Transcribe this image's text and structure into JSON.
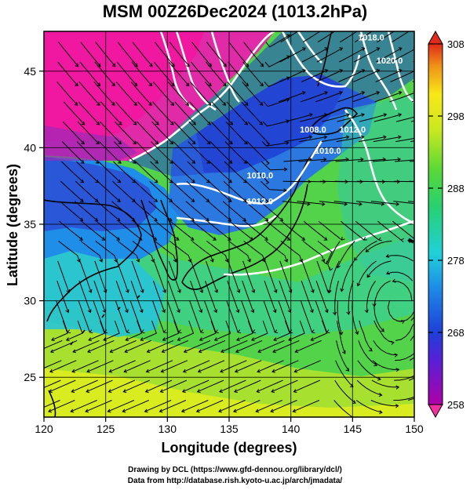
{
  "title": "MSM 00Z26Dec2024 (1013.2hPa)",
  "x_axis": {
    "label": "Longitude (degrees)",
    "ticks": [
      120,
      125,
      130,
      135,
      140,
      145,
      150
    ],
    "range": [
      120,
      150
    ]
  },
  "y_axis": {
    "label": "Latitude  (degrees)",
    "ticks": [
      25,
      30,
      35,
      40,
      45
    ],
    "range": [
      22.4,
      47.6
    ]
  },
  "colorbar": {
    "ticks": [
      258,
      268,
      278,
      288,
      298,
      308
    ],
    "range": [
      258,
      308
    ]
  },
  "contours": [
    {
      "label": "1010.0",
      "lon": 137.5,
      "lat": 38.0
    },
    {
      "label": "1012.0",
      "lon": 137.5,
      "lat": 36.3
    },
    {
      "label": "1008.0",
      "lon": 141.8,
      "lat": 41.0
    },
    {
      "label": "1010.0",
      "lon": 143.0,
      "lat": 39.6
    },
    {
      "label": "1012.0",
      "lon": 145.0,
      "lat": 41.0
    },
    {
      "label": "1018.0",
      "lon": 146.5,
      "lat": 47.0
    },
    {
      "label": "1020.0",
      "lon": 148.0,
      "lat": 45.5
    }
  ],
  "footer": {
    "line1": "Drawing by DCL (https://www.gfd-dennou.org/library/dcl/)",
    "line2": "Data from http://database.rish.kyoto-u.ac.jp/arch/jmadata/"
  }
}
